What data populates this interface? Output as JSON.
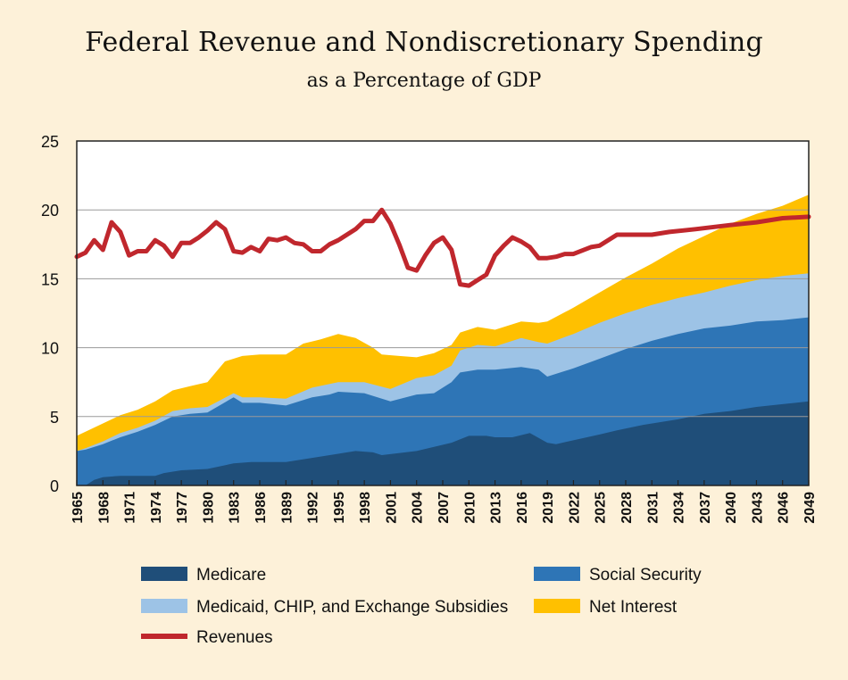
{
  "chart_data": {
    "type": "area",
    "title": "Federal Revenue and Nondiscretionary Spending",
    "subtitle": "as a Percentage of GDP",
    "xlabel": "",
    "ylabel": "",
    "ylim": [
      0,
      25
    ],
    "yticks": [
      0,
      5,
      10,
      15,
      20,
      25
    ],
    "xlim": [
      1965,
      2049
    ],
    "xticks": [
      1965,
      1968,
      1971,
      1974,
      1977,
      1980,
      1983,
      1986,
      1989,
      1992,
      1995,
      1998,
      2001,
      2004,
      2007,
      2010,
      2013,
      2016,
      2019,
      2022,
      2025,
      2028,
      2031,
      2034,
      2037,
      2040,
      2043,
      2046,
      2049
    ],
    "grid": true,
    "legend_position": "bottom",
    "stacked_series": [
      {
        "name": "Medicare",
        "color": "#1f4e79",
        "points": [
          [
            1965,
            0
          ],
          [
            1966,
            0
          ],
          [
            1967,
            0.4
          ],
          [
            1968,
            0.6
          ],
          [
            1970,
            0.7
          ],
          [
            1974,
            0.7
          ],
          [
            1975,
            0.9
          ],
          [
            1977,
            1.1
          ],
          [
            1980,
            1.2
          ],
          [
            1983,
            1.6
          ],
          [
            1985,
            1.7
          ],
          [
            1989,
            1.7
          ],
          [
            1992,
            2.0
          ],
          [
            1995,
            2.3
          ],
          [
            1997,
            2.5
          ],
          [
            1999,
            2.4
          ],
          [
            2000,
            2.2
          ],
          [
            2004,
            2.5
          ],
          [
            2008,
            3.1
          ],
          [
            2010,
            3.6
          ],
          [
            2012,
            3.6
          ],
          [
            2013,
            3.5
          ],
          [
            2015,
            3.5
          ],
          [
            2017,
            3.8
          ],
          [
            2019,
            3.1
          ],
          [
            2020,
            3.0
          ],
          [
            2025,
            3.7
          ],
          [
            2027,
            4.0
          ],
          [
            2030,
            4.4
          ],
          [
            2034,
            4.8
          ],
          [
            2037,
            5.2
          ],
          [
            2040,
            5.4
          ],
          [
            2043,
            5.7
          ],
          [
            2046,
            5.9
          ],
          [
            2049,
            6.1
          ]
        ]
      },
      {
        "name": "Social Security",
        "color": "#2e75b6",
        "points": [
          [
            1965,
            2.5
          ],
          [
            1966,
            2.6
          ],
          [
            1968,
            3.0
          ],
          [
            1970,
            3.5
          ],
          [
            1972,
            3.9
          ],
          [
            1974,
            4.4
          ],
          [
            1976,
            5.0
          ],
          [
            1978,
            5.2
          ],
          [
            1980,
            5.3
          ],
          [
            1983,
            6.4
          ],
          [
            1984,
            6.0
          ],
          [
            1986,
            6.0
          ],
          [
            1989,
            5.8
          ],
          [
            1992,
            6.4
          ],
          [
            1994,
            6.6
          ],
          [
            1995,
            6.8
          ],
          [
            1998,
            6.7
          ],
          [
            2001,
            6.1
          ],
          [
            2004,
            6.6
          ],
          [
            2006,
            6.7
          ],
          [
            2008,
            7.5
          ],
          [
            2009,
            8.2
          ],
          [
            2011,
            8.4
          ],
          [
            2013,
            8.4
          ],
          [
            2016,
            8.6
          ],
          [
            2018,
            8.4
          ],
          [
            2019,
            7.9
          ],
          [
            2022,
            8.5
          ],
          [
            2025,
            9.2
          ],
          [
            2028,
            9.9
          ],
          [
            2031,
            10.5
          ],
          [
            2034,
            11.0
          ],
          [
            2037,
            11.4
          ],
          [
            2040,
            11.6
          ],
          [
            2043,
            11.9
          ],
          [
            2046,
            12.0
          ],
          [
            2049,
            12.2
          ]
        ]
      },
      {
        "name": "Medicaid, CHIP, and Exchange Subsidies",
        "color": "#9dc3e6",
        "points": [
          [
            1965,
            2.5
          ],
          [
            1966,
            2.7
          ],
          [
            1968,
            3.2
          ],
          [
            1970,
            3.8
          ],
          [
            1972,
            4.2
          ],
          [
            1974,
            4.7
          ],
          [
            1976,
            5.4
          ],
          [
            1978,
            5.6
          ],
          [
            1980,
            5.7
          ],
          [
            1983,
            6.7
          ],
          [
            1984,
            6.4
          ],
          [
            1986,
            6.4
          ],
          [
            1989,
            6.3
          ],
          [
            1992,
            7.1
          ],
          [
            1995,
            7.5
          ],
          [
            1998,
            7.5
          ],
          [
            2001,
            7.0
          ],
          [
            2004,
            7.8
          ],
          [
            2006,
            8.0
          ],
          [
            2008,
            8.7
          ],
          [
            2009,
            9.8
          ],
          [
            2011,
            10.2
          ],
          [
            2013,
            10.1
          ],
          [
            2016,
            10.7
          ],
          [
            2018,
            10.4
          ],
          [
            2019,
            10.3
          ],
          [
            2022,
            11.0
          ],
          [
            2025,
            11.8
          ],
          [
            2028,
            12.5
          ],
          [
            2031,
            13.1
          ],
          [
            2034,
            13.6
          ],
          [
            2037,
            14.0
          ],
          [
            2040,
            14.5
          ],
          [
            2043,
            14.9
          ],
          [
            2046,
            15.2
          ],
          [
            2049,
            15.4
          ]
        ]
      },
      {
        "name": "Net Interest",
        "color": "#ffc000",
        "points": [
          [
            1965,
            3.6
          ],
          [
            1966,
            3.9
          ],
          [
            1968,
            4.5
          ],
          [
            1970,
            5.1
          ],
          [
            1972,
            5.5
          ],
          [
            1974,
            6.1
          ],
          [
            1976,
            6.9
          ],
          [
            1978,
            7.2
          ],
          [
            1980,
            7.5
          ],
          [
            1982,
            9.0
          ],
          [
            1984,
            9.4
          ],
          [
            1986,
            9.5
          ],
          [
            1989,
            9.5
          ],
          [
            1991,
            10.3
          ],
          [
            1993,
            10.6
          ],
          [
            1995,
            11.0
          ],
          [
            1997,
            10.7
          ],
          [
            1999,
            10.0
          ],
          [
            2000,
            9.5
          ],
          [
            2002,
            9.4
          ],
          [
            2004,
            9.3
          ],
          [
            2006,
            9.6
          ],
          [
            2008,
            10.2
          ],
          [
            2009,
            11.1
          ],
          [
            2011,
            11.5
          ],
          [
            2013,
            11.3
          ],
          [
            2016,
            11.9
          ],
          [
            2018,
            11.8
          ],
          [
            2019,
            11.9
          ],
          [
            2022,
            12.9
          ],
          [
            2025,
            14.0
          ],
          [
            2028,
            15.1
          ],
          [
            2031,
            16.1
          ],
          [
            2034,
            17.2
          ],
          [
            2037,
            18.1
          ],
          [
            2040,
            19.0
          ],
          [
            2043,
            19.7
          ],
          [
            2046,
            20.3
          ],
          [
            2049,
            21.1
          ]
        ]
      }
    ],
    "line_series": [
      {
        "name": "Revenues",
        "color": "#c0272d",
        "points": [
          [
            1965,
            16.6
          ],
          [
            1966,
            16.9
          ],
          [
            1967,
            17.8
          ],
          [
            1968,
            17.1
          ],
          [
            1969,
            19.1
          ],
          [
            1970,
            18.4
          ],
          [
            1971,
            16.7
          ],
          [
            1972,
            17.0
          ],
          [
            1973,
            17.0
          ],
          [
            1974,
            17.8
          ],
          [
            1975,
            17.4
          ],
          [
            1976,
            16.6
          ],
          [
            1977,
            17.6
          ],
          [
            1978,
            17.6
          ],
          [
            1979,
            18.0
          ],
          [
            1980,
            18.5
          ],
          [
            1981,
            19.1
          ],
          [
            1982,
            18.6
          ],
          [
            1983,
            17.0
          ],
          [
            1984,
            16.9
          ],
          [
            1985,
            17.3
          ],
          [
            1986,
            17.0
          ],
          [
            1987,
            17.9
          ],
          [
            1988,
            17.8
          ],
          [
            1989,
            18.0
          ],
          [
            1990,
            17.6
          ],
          [
            1991,
            17.5
          ],
          [
            1992,
            17.0
          ],
          [
            1993,
            17.0
          ],
          [
            1994,
            17.5
          ],
          [
            1995,
            17.8
          ],
          [
            1996,
            18.2
          ],
          [
            1997,
            18.6
          ],
          [
            1998,
            19.2
          ],
          [
            1999,
            19.2
          ],
          [
            2000,
            20.0
          ],
          [
            2001,
            19.0
          ],
          [
            2002,
            17.5
          ],
          [
            2003,
            15.8
          ],
          [
            2004,
            15.6
          ],
          [
            2005,
            16.7
          ],
          [
            2006,
            17.6
          ],
          [
            2007,
            18.0
          ],
          [
            2008,
            17.1
          ],
          [
            2009,
            14.6
          ],
          [
            2010,
            14.5
          ],
          [
            2011,
            14.9
          ],
          [
            2012,
            15.3
          ],
          [
            2013,
            16.7
          ],
          [
            2014,
            17.4
          ],
          [
            2015,
            18.0
          ],
          [
            2016,
            17.7
          ],
          [
            2017,
            17.3
          ],
          [
            2018,
            16.5
          ],
          [
            2019,
            16.5
          ],
          [
            2020,
            16.6
          ],
          [
            2021,
            16.8
          ],
          [
            2022,
            16.8
          ],
          [
            2024,
            17.3
          ],
          [
            2025,
            17.4
          ],
          [
            2027,
            18.2
          ],
          [
            2031,
            18.2
          ],
          [
            2033,
            18.4
          ],
          [
            2036,
            18.6
          ],
          [
            2040,
            18.9
          ],
          [
            2043,
            19.1
          ],
          [
            2046,
            19.4
          ],
          [
            2049,
            19.5
          ]
        ]
      }
    ]
  }
}
